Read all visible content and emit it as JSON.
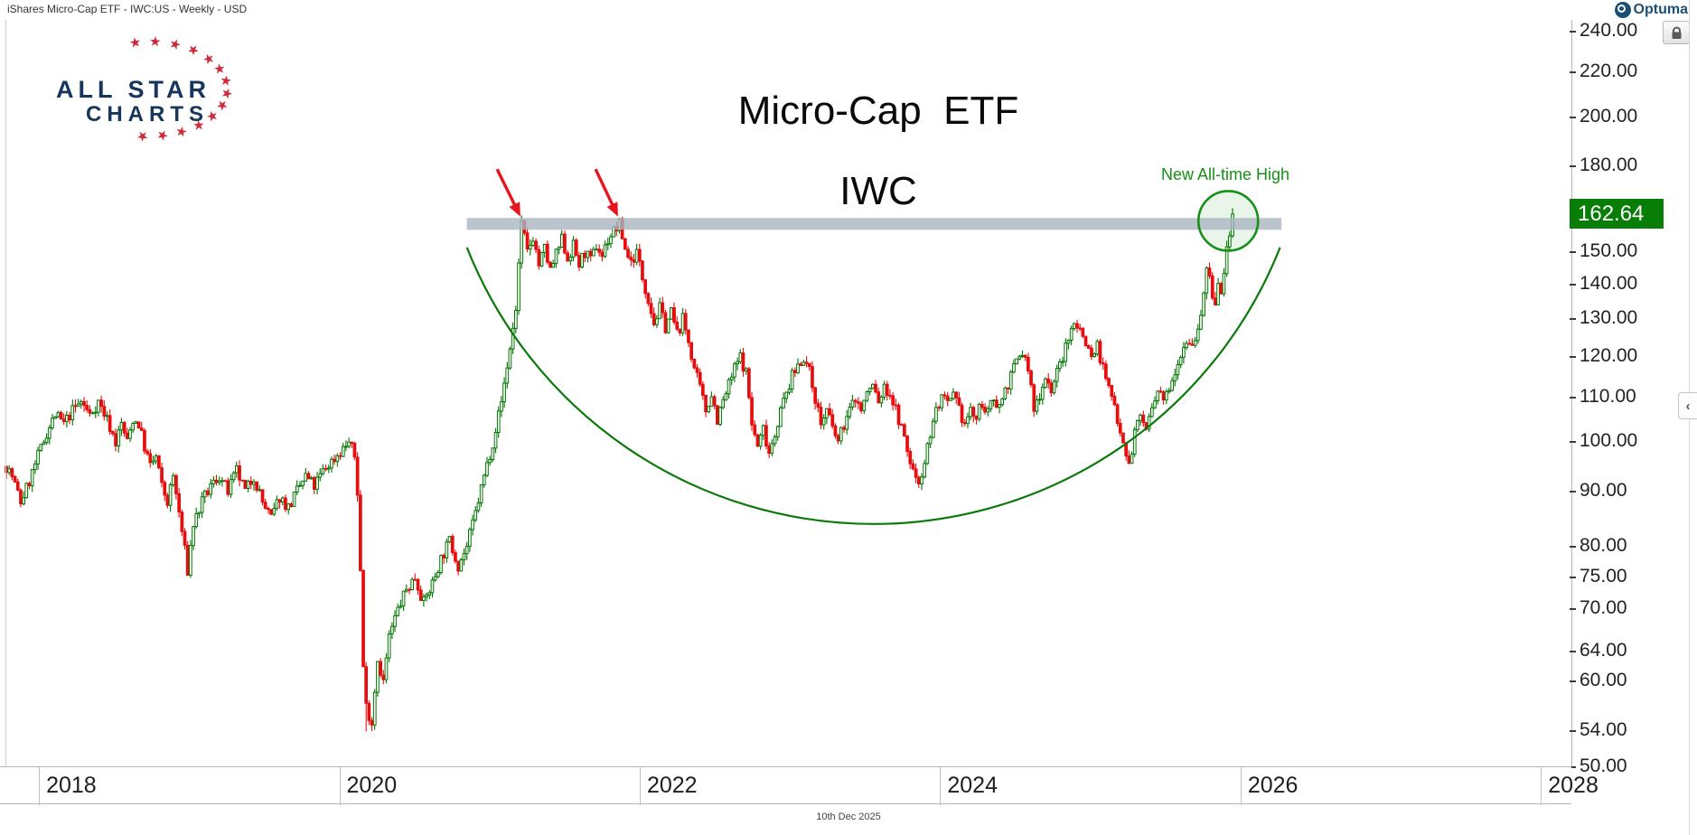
{
  "header": {
    "instrument_label": "iShares Micro-Cap ETF - IWC:US - Weekly - USD"
  },
  "branding": {
    "optuma_label": "Optuma",
    "allstar_line1": "ALL STAR",
    "allstar_line2": "CHARTS"
  },
  "side_controls": {
    "collapse_chevron": "‹"
  },
  "footer": {
    "date_label": "10th Dec 2025"
  },
  "chart_data": {
    "type": "candlestick",
    "title": "Micro-Cap  ETF",
    "subtitle": "IWC",
    "instrument": "iShares Micro-Cap ETF",
    "symbol": "IWC:US",
    "interval": "Weekly",
    "currency": "USD",
    "last_price": 162.64,
    "last_price_label": "162.64",
    "y_axis": {
      "scale": "log",
      "ticks": [
        240,
        220,
        200,
        180,
        150,
        140,
        130,
        120,
        110,
        100,
        90,
        80,
        75,
        70,
        64,
        60,
        54,
        50
      ],
      "tick_format": "0.00",
      "top_price_at_top_edge": 240,
      "price_at_bottom_edge": 50
    },
    "x_axis": {
      "years": [
        2018,
        2020,
        2022,
        2024,
        2026,
        2028
      ],
      "start": "Oct 2017",
      "end": "Dec 2025"
    },
    "annotations": {
      "ath_label": "New All-time High",
      "resistance_band": {
        "week_start": 160,
        "week_end": 443,
        "price_top": 161.3,
        "price_bottom": 157.3
      },
      "arrows": [
        {
          "from_week": 170.5,
          "from_price": 179,
          "to_week": 178.6,
          "to_price": 161.8
        },
        {
          "from_week": 204.7,
          "from_price": 179,
          "to_week": 212.5,
          "to_price": 161.8
        }
      ],
      "cup_arc": {
        "week_start": 160,
        "week_end": 442.5,
        "rim_price": 151.5,
        "bottom_price": 84
      },
      "ath_circle": {
        "center_week": 424.5,
        "center_price": 160.3,
        "radius_px": 33
      }
    },
    "weeks_total": 426,
    "anchor_path": [
      [
        0,
        95
      ],
      [
        2,
        93
      ],
      [
        5,
        88
      ],
      [
        8,
        92
      ],
      [
        11,
        97
      ],
      [
        14,
        102
      ],
      [
        17,
        106
      ],
      [
        20,
        104
      ],
      [
        23,
        107
      ],
      [
        26,
        109
      ],
      [
        29,
        106
      ],
      [
        32,
        109
      ],
      [
        35,
        105
      ],
      [
        38,
        100
      ],
      [
        40,
        104
      ],
      [
        42,
        100
      ],
      [
        44,
        105
      ],
      [
        46,
        104
      ],
      [
        48,
        99
      ],
      [
        50,
        95
      ],
      [
        52,
        97
      ],
      [
        54,
        91
      ],
      [
        56,
        88
      ],
      [
        58,
        93
      ],
      [
        60,
        86
      ],
      [
        63,
        76
      ],
      [
        65,
        84
      ],
      [
        68,
        88
      ],
      [
        71,
        91
      ],
      [
        74,
        93
      ],
      [
        77,
        90
      ],
      [
        80,
        94
      ],
      [
        83,
        90
      ],
      [
        86,
        93
      ],
      [
        89,
        88
      ],
      [
        92,
        85
      ],
      [
        95,
        89
      ],
      [
        98,
        87
      ],
      [
        101,
        90
      ],
      [
        104,
        93
      ],
      [
        107,
        91
      ],
      [
        110,
        94
      ],
      [
        113,
        96
      ],
      [
        116,
        98
      ],
      [
        119,
        100
      ],
      [
        121,
        97
      ],
      [
        122,
        90
      ],
      [
        123,
        76
      ],
      [
        124,
        62
      ],
      [
        125,
        57
      ],
      [
        127,
        55
      ],
      [
        129,
        63
      ],
      [
        131,
        60
      ],
      [
        133,
        66
      ],
      [
        136,
        70
      ],
      [
        139,
        73
      ],
      [
        142,
        75
      ],
      [
        145,
        71
      ],
      [
        148,
        74
      ],
      [
        151,
        78
      ],
      [
        154,
        81
      ],
      [
        157,
        77
      ],
      [
        160,
        80
      ],
      [
        163,
        86
      ],
      [
        166,
        93
      ],
      [
        169,
        100
      ],
      [
        172,
        109
      ],
      [
        175,
        122
      ],
      [
        177,
        133
      ],
      [
        179,
        159
      ],
      [
        181,
        150
      ],
      [
        183,
        155
      ],
      [
        185,
        146
      ],
      [
        187,
        151
      ],
      [
        189,
        144
      ],
      [
        191,
        149
      ],
      [
        193,
        154
      ],
      [
        195,
        148
      ],
      [
        197,
        152
      ],
      [
        199,
        146
      ],
      [
        201,
        150
      ],
      [
        203,
        147
      ],
      [
        205,
        152
      ],
      [
        207,
        149
      ],
      [
        209,
        154
      ],
      [
        211,
        157
      ],
      [
        213,
        159
      ],
      [
        215,
        151
      ],
      [
        217,
        147
      ],
      [
        219,
        150
      ],
      [
        221,
        142
      ],
      [
        223,
        136
      ],
      [
        225,
        129
      ],
      [
        227,
        133
      ],
      [
        229,
        128
      ],
      [
        231,
        132
      ],
      [
        233,
        126
      ],
      [
        235,
        130
      ],
      [
        237,
        124
      ],
      [
        239,
        117
      ],
      [
        241,
        112
      ],
      [
        243,
        107
      ],
      [
        245,
        111
      ],
      [
        247,
        105
      ],
      [
        249,
        109
      ],
      [
        251,
        113
      ],
      [
        253,
        117
      ],
      [
        255,
        120
      ],
      [
        257,
        116
      ],
      [
        259,
        104
      ],
      [
        261,
        99
      ],
      [
        263,
        103
      ],
      [
        265,
        98
      ],
      [
        267,
        102
      ],
      [
        269,
        107
      ],
      [
        271,
        111
      ],
      [
        273,
        115
      ],
      [
        275,
        118
      ],
      [
        277,
        120
      ],
      [
        279,
        116
      ],
      [
        281,
        110
      ],
      [
        283,
        104
      ],
      [
        285,
        107
      ],
      [
        287,
        103
      ],
      [
        289,
        100
      ],
      [
        291,
        104
      ],
      [
        293,
        107
      ],
      [
        295,
        110
      ],
      [
        297,
        107
      ],
      [
        299,
        111
      ],
      [
        301,
        113
      ],
      [
        303,
        109
      ],
      [
        305,
        112
      ],
      [
        307,
        111
      ],
      [
        309,
        107
      ],
      [
        311,
        103
      ],
      [
        313,
        98
      ],
      [
        315,
        94
      ],
      [
        317,
        92
      ],
      [
        319,
        96
      ],
      [
        321,
        102
      ],
      [
        323,
        107
      ],
      [
        325,
        110
      ],
      [
        327,
        108
      ],
      [
        329,
        110
      ],
      [
        331,
        107
      ],
      [
        333,
        104
      ],
      [
        335,
        107
      ],
      [
        337,
        105
      ],
      [
        339,
        109
      ],
      [
        341,
        106
      ],
      [
        343,
        110
      ],
      [
        345,
        108
      ],
      [
        347,
        112
      ],
      [
        349,
        115
      ],
      [
        351,
        119
      ],
      [
        353,
        121
      ],
      [
        355,
        117
      ],
      [
        357,
        107
      ],
      [
        359,
        111
      ],
      [
        361,
        115
      ],
      [
        363,
        112
      ],
      [
        365,
        116
      ],
      [
        367,
        120
      ],
      [
        369,
        124
      ],
      [
        371,
        130
      ],
      [
        373,
        127
      ],
      [
        375,
        124
      ],
      [
        377,
        120
      ],
      [
        379,
        123
      ],
      [
        381,
        117
      ],
      [
        383,
        112
      ],
      [
        385,
        108
      ],
      [
        387,
        103
      ],
      [
        389,
        98
      ],
      [
        390,
        95
      ],
      [
        392,
        102
      ],
      [
        394,
        106
      ],
      [
        396,
        103
      ],
      [
        398,
        107
      ],
      [
        400,
        111
      ],
      [
        402,
        109
      ],
      [
        404,
        113
      ],
      [
        406,
        117
      ],
      [
        408,
        121
      ],
      [
        410,
        125
      ],
      [
        412,
        123
      ],
      [
        414,
        128
      ],
      [
        415,
        132
      ],
      [
        416,
        138
      ],
      [
        417,
        144
      ],
      [
        418,
        141
      ],
      [
        419,
        137
      ],
      [
        420,
        134
      ],
      [
        421,
        140
      ],
      [
        422,
        137
      ],
      [
        423,
        143
      ],
      [
        424,
        151
      ],
      [
        425,
        157
      ],
      [
        426,
        162.64
      ]
    ],
    "spike_overrides": {
      "63": {
        "low": 75.5
      },
      "125": {
        "low": 54
      },
      "179": {
        "high": 162.2
      },
      "213": {
        "high": 161.4
      },
      "426": {
        "high": 164.7,
        "close": 162.64
      }
    },
    "colors": {
      "up": "#007400",
      "down": "#e80c0c",
      "band": "#aab4c0",
      "annotation_green": "#169016",
      "arrow_red": "#e8151f",
      "price_tag_bg": "#087d08",
      "price_tag_text": "#ffffff"
    }
  }
}
